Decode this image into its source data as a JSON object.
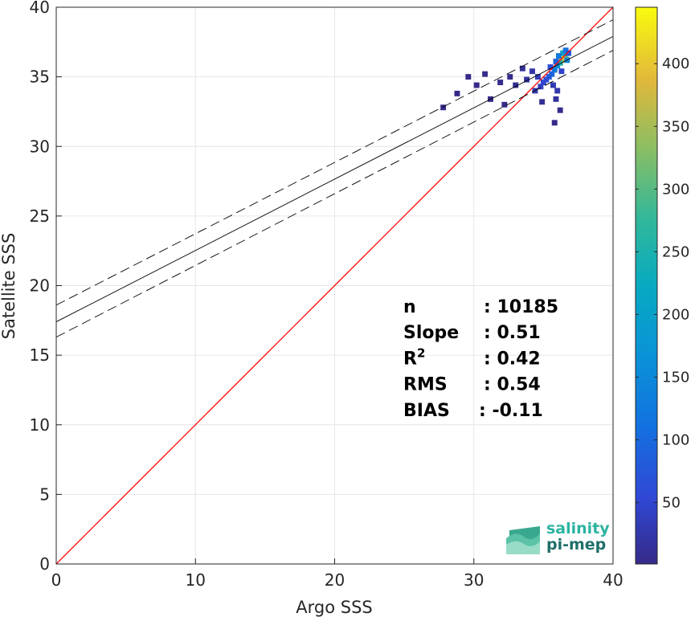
{
  "chart_data": {
    "type": "heatmap",
    "xlabel": "Argo SSS",
    "ylabel": "Satellite SSS",
    "xlim": [
      0,
      40
    ],
    "ylim": [
      0,
      40
    ],
    "x_ticks": [
      "0",
      "10",
      "20",
      "30",
      "40"
    ],
    "y_ticks": [
      "0",
      "5",
      "10",
      "15",
      "20",
      "25",
      "30",
      "35",
      "40"
    ],
    "grid": true,
    "identity_line": {
      "x": [
        0,
        40
      ],
      "y": [
        0,
        40
      ],
      "color": "#ff0000"
    },
    "regression_line": {
      "x": [
        0,
        40
      ],
      "y": [
        17.4,
        37.9
      ]
    },
    "regression_bounds": [
      {
        "x": [
          0,
          40
        ],
        "y": [
          18.6,
          39.1
        ]
      },
      {
        "x": [
          0,
          40
        ],
        "y": [
          16.3,
          36.9
        ]
      }
    ],
    "density_cells": [
      {
        "x": 36.5,
        "y": 36.4,
        "count": 445
      },
      {
        "x": 36.3,
        "y": 36.2,
        "count": 380
      },
      {
        "x": 36.6,
        "y": 36.6,
        "count": 320
      },
      {
        "x": 36.2,
        "y": 36.0,
        "count": 260
      },
      {
        "x": 36.4,
        "y": 36.7,
        "count": 210
      },
      {
        "x": 36.0,
        "y": 35.8,
        "count": 170
      },
      {
        "x": 36.7,
        "y": 36.2,
        "count": 150
      },
      {
        "x": 35.8,
        "y": 35.5,
        "count": 130
      },
      {
        "x": 36.1,
        "y": 36.5,
        "count": 120
      },
      {
        "x": 36.6,
        "y": 36.9,
        "count": 110
      },
      {
        "x": 35.6,
        "y": 35.2,
        "count": 95
      },
      {
        "x": 35.9,
        "y": 36.1,
        "count": 90
      },
      {
        "x": 35.4,
        "y": 35.0,
        "count": 80
      },
      {
        "x": 36.8,
        "y": 36.7,
        "count": 75
      },
      {
        "x": 35.2,
        "y": 34.8,
        "count": 65
      },
      {
        "x": 35.5,
        "y": 35.7,
        "count": 60
      },
      {
        "x": 35.0,
        "y": 34.6,
        "count": 50
      },
      {
        "x": 36.3,
        "y": 35.4,
        "count": 45
      },
      {
        "x": 34.8,
        "y": 34.3,
        "count": 40
      },
      {
        "x": 34.6,
        "y": 35.0,
        "count": 35
      },
      {
        "x": 35.7,
        "y": 34.4,
        "count": 30
      },
      {
        "x": 34.4,
        "y": 34.0,
        "count": 28
      },
      {
        "x": 36.0,
        "y": 34.0,
        "count": 25
      },
      {
        "x": 34.2,
        "y": 35.4,
        "count": 22
      },
      {
        "x": 33.8,
        "y": 34.8,
        "count": 18
      },
      {
        "x": 35.9,
        "y": 33.4,
        "count": 15
      },
      {
        "x": 33.5,
        "y": 35.6,
        "count": 12
      },
      {
        "x": 34.9,
        "y": 33.2,
        "count": 10
      },
      {
        "x": 33.0,
        "y": 34.4,
        "count": 8
      },
      {
        "x": 32.6,
        "y": 35.0,
        "count": 6
      },
      {
        "x": 36.2,
        "y": 32.6,
        "count": 5
      },
      {
        "x": 31.9,
        "y": 34.6,
        "count": 4
      },
      {
        "x": 30.8,
        "y": 35.2,
        "count": 3
      },
      {
        "x": 30.2,
        "y": 34.4,
        "count": 2
      },
      {
        "x": 31.2,
        "y": 33.4,
        "count": 2
      },
      {
        "x": 29.6,
        "y": 35.0,
        "count": 1
      },
      {
        "x": 27.8,
        "y": 32.8,
        "count": 1
      },
      {
        "x": 35.8,
        "y": 31.7,
        "count": 1
      },
      {
        "x": 28.8,
        "y": 33.8,
        "count": 1
      },
      {
        "x": 32.2,
        "y": 33.0,
        "count": 1
      }
    ],
    "colorbar": {
      "min": 1,
      "max": 445,
      "ticks": [
        "50",
        "100",
        "150",
        "200",
        "250",
        "300",
        "350",
        "400"
      ],
      "colormap": "parula"
    },
    "stats": [
      {
        "label": "n",
        "value": ": 10185"
      },
      {
        "label": "Slope",
        "value": ": 0.51"
      },
      {
        "label": "R",
        "sup": "2",
        "value": ": 0.42"
      },
      {
        "label": "RMS",
        "value": ": 0.54"
      },
      {
        "label": "BIAS",
        "value": ": -0.11"
      }
    ]
  },
  "logo": {
    "line1": "salinity",
    "line2": "pi-mep"
  }
}
